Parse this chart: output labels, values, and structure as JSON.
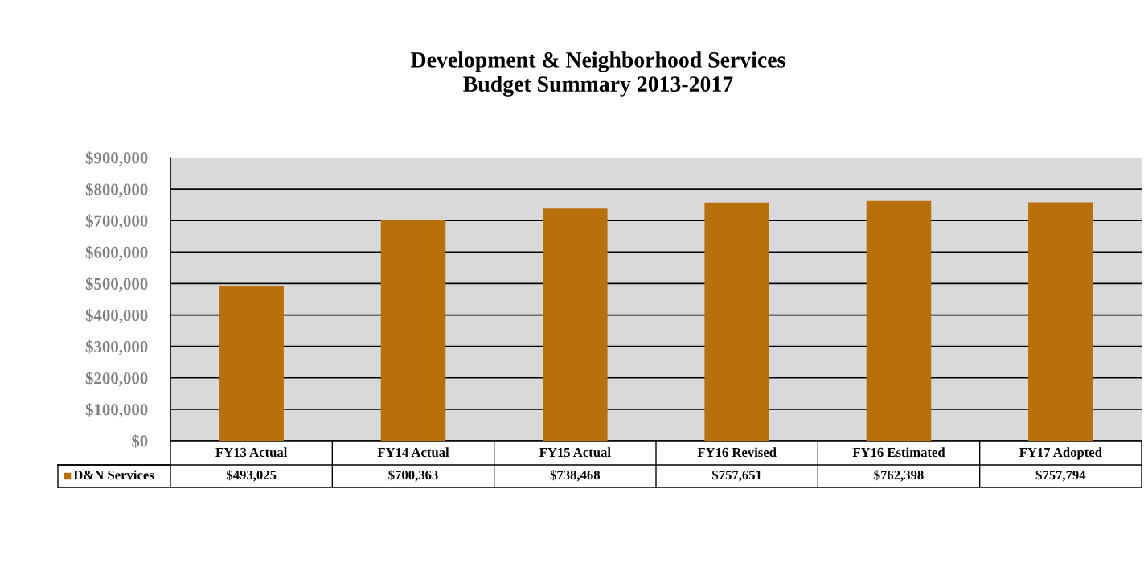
{
  "chart_data": {
    "type": "bar",
    "title": "Development & Neighborhood Services\nBudget Summary 2013-2017",
    "categories": [
      "FY13 Actual",
      "FY14 Actual",
      "FY15 Actual",
      "FY16 Revised",
      "FY16 Estimated",
      "FY17 Adopted"
    ],
    "series": [
      {
        "name": "D&N Services",
        "color": "#b8700c",
        "values": [
          493025,
          700363,
          738468,
          757651,
          762398,
          757794
        ],
        "value_labels": [
          "$493,025",
          "$700,363",
          "$738,468",
          "$757,651",
          "$762,398",
          "$757,794"
        ]
      }
    ],
    "ylim": [
      0,
      900000
    ],
    "yticks": [
      {
        "value": 0,
        "label": "$0"
      },
      {
        "value": 100000,
        "label": "$100,000"
      },
      {
        "value": 200000,
        "label": "$200,000"
      },
      {
        "value": 300000,
        "label": "$300,000"
      },
      {
        "value": 400000,
        "label": "$400,000"
      },
      {
        "value": 500000,
        "label": "$500,000"
      },
      {
        "value": 600000,
        "label": "$600,000"
      },
      {
        "value": 700000,
        "label": "$700,000"
      },
      {
        "value": 800000,
        "label": "$800,000"
      },
      {
        "value": 900000,
        "label": "$900,000"
      }
    ],
    "grid": "y"
  }
}
